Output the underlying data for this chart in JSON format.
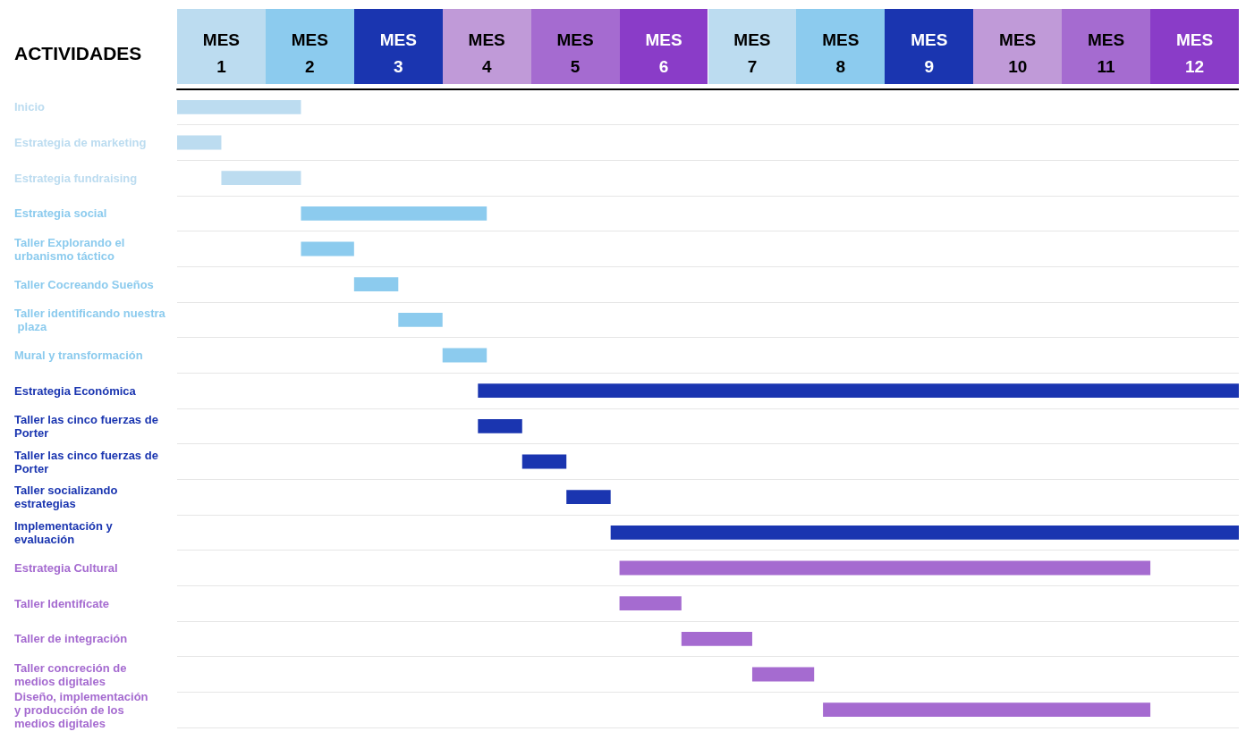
{
  "chart_data": {
    "type": "bar",
    "orientation": "horizontal",
    "ylabel": "ACTIVIDADES",
    "categories": [
      "Inicio",
      "Estrategia de marketing",
      "Estrategia fundraising",
      "Estrategia social",
      "Taller Explorando el urbanismo táctico",
      "Taller Cocreando Sueños",
      "Taller identificando nuestra plaza",
      "Mural y transformación",
      "Estrategia Económica",
      "Taller las cinco fuerzas de Porter",
      "Taller las cinco fuerzas de Porter",
      "Taller socializando estrategias",
      "Implementación y evaluación",
      "Estrategia Cultural",
      "Taller Identifícate",
      "Taller de integración",
      "Taller concreción de medios digitales",
      "Diseño, implementación y producción de los medios digitales"
    ],
    "base": [
      0.5,
      0.5,
      1,
      1.9,
      1.9,
      2.5,
      3,
      3.5,
      3.9,
      3.9,
      4.4,
      4.9,
      5.4,
      5.5,
      5.5,
      6.2,
      7,
      7.8
    ],
    "values": [
      1.4,
      0.5,
      0.9,
      2.1,
      0.6,
      0.5,
      0.5,
      0.5,
      8.6,
      0.5,
      0.5,
      0.5,
      7.1,
      6,
      0.7,
      0.8,
      0.7,
      3.7
    ],
    "colors": [
      "#bcdcf0",
      "#bcdcf0",
      "#bcdcf0",
      "#8ccbee",
      "#8ccbee",
      "#8ccbee",
      "#8ccbee",
      "#8ccbee",
      "#1a35b0",
      "#1a35b0",
      "#1a35b0",
      "#1a35b0",
      "#1a35b0",
      "#a56bd0",
      "#a56bd0",
      "#a56bd0",
      "#a56bd0",
      "#a56bd0"
    ],
    "xlim": [
      0.5,
      12.5
    ],
    "xlabel": "MES",
    "xticks": [
      1,
      2,
      3,
      4,
      5,
      6,
      7,
      8,
      9,
      10,
      11,
      12
    ]
  }
}
